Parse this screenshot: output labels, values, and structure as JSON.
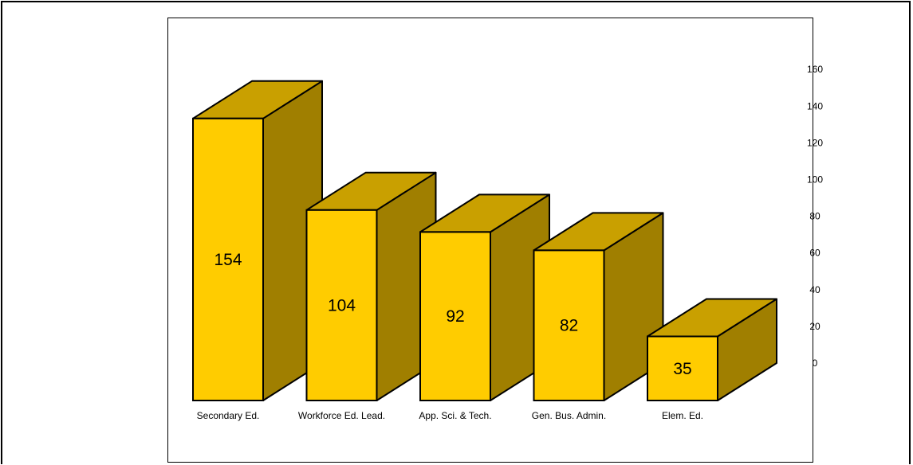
{
  "chart_data": {
    "type": "bar",
    "style": "3d",
    "title": "",
    "xlabel": "",
    "ylabel": "",
    "categories": [
      "Secondary Ed.",
      "Workforce Ed. Lead.",
      "App. Sci. & Tech.",
      "Gen. Bus. Admin.",
      "Elem. Ed."
    ],
    "values": [
      154,
      104,
      92,
      82,
      35
    ],
    "value_labels": [
      "154",
      "104",
      "92",
      "82",
      "35"
    ],
    "ylim": [
      0,
      160
    ],
    "yticks": [
      0,
      20,
      40,
      60,
      80,
      100,
      120,
      140,
      160
    ],
    "ytick_labels": [
      "0",
      "20",
      "40",
      "60",
      "80",
      "100",
      "120",
      "140",
      "160"
    ],
    "yaxis_side": "right",
    "grid": false,
    "legend": "none",
    "colors": {
      "front": "#ffcc00",
      "side": "#a07f00",
      "top": "#c9a000",
      "outline": "#000000"
    }
  }
}
